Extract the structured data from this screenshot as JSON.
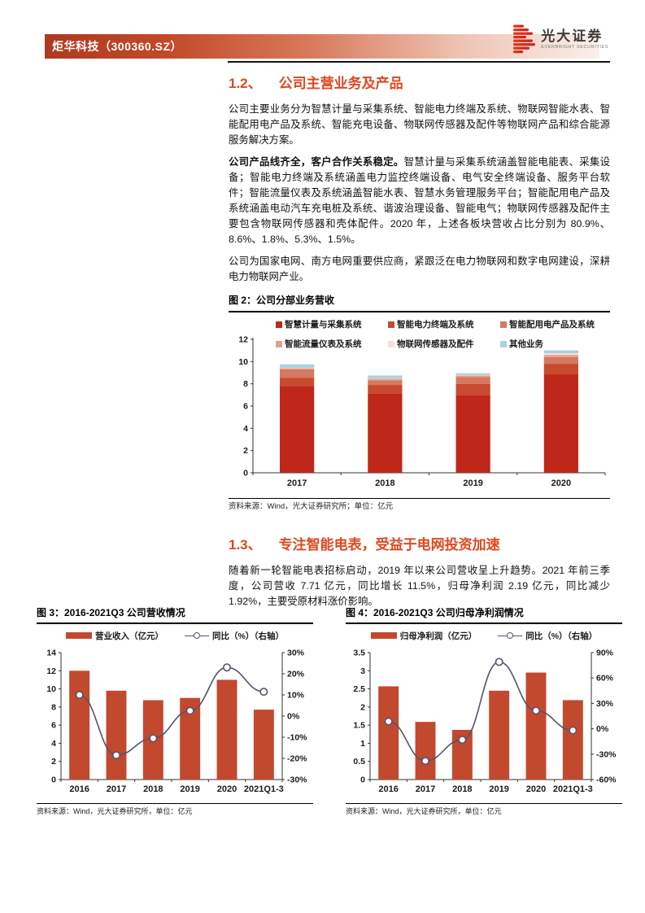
{
  "header": {
    "stock_label": "炬华科技（300360.SZ）",
    "brand_cn": "光大证券",
    "brand_en": "EVERBRIGHT SECURITIES"
  },
  "section_1_2": {
    "number": "1.2、",
    "title": "公司主营业务及产品",
    "para1": "公司主要业务分为智慧计量与采集系统、智能电力终端及系统、物联网智能水表、智能配用电产品及系统、智能充电设备、物联网传感器及配件等物联网产品和综合能源服务解决方案。",
    "para2_bold": "公司产品线齐全，客户合作关系稳定。",
    "para2_rest": "智慧计量与采集系统涵盖智能电能表、采集设备；智能电力终端及系统涵盖电力监控终端设备、电气安全终端设备、服务平台软件；智能流量仪表及系统涵盖智能水表、智慧水务管理服务平台；智能配用电产品及系统涵盖电动汽车充电桩及系统、谐波治理设备、智能电气；物联网传感器及配件主要包含物联网传感器和壳体配件。2020 年，上述各板块营收占比分别为 80.9%、8.6%、1.8%、5.3%、1.5%。",
    "para3": "公司为国家电网、南方电网重要供应商，紧跟泛在电力物联网和数字电网建设，深耕电力物联网产业。"
  },
  "figure2": {
    "title": "图 2：公司分部业务营收",
    "source": "资料来源：Wind，光大证券研究所；单位：亿元"
  },
  "section_1_3": {
    "number": "1.3、",
    "title": "专注智能电表，受益于电网投资加速",
    "para1": "随着新一轮智能电表招标启动，2019 年以来公司营收呈上升趋势。2021 年前三季度，公司营收 7.71 亿元，同比增长 11.5%，归母净利润 2.19 亿元，同比减少 1.92%，主要受原材料涨价影响。"
  },
  "figure3": {
    "title": "图 3：2016-2021Q3 公司营收情况",
    "source": "资料来源：Wind，光大证券研究所，单位：亿元"
  },
  "figure4": {
    "title": "图 4：2016-2021Q3 公司归母净利润情况",
    "source": "资料来源：Wind，光大证券研究所，单位：亿元"
  },
  "colors": {
    "accent_orange": "#e1471f",
    "bar_red": "#c2492e",
    "line_navy": "#54536e",
    "banner_red": "#ae3920"
  },
  "chart_data": [
    {
      "id": "fig2-chart",
      "type": "bar",
      "subtype": "stacked",
      "title": "公司分部业务营收",
      "unit": "亿元",
      "categories": [
        "2017",
        "2018",
        "2019",
        "2020"
      ],
      "series": [
        {
          "name": "智慧计量与采集系统",
          "color": "#bf271b",
          "values": [
            7.8,
            7.1,
            7.0,
            8.85
          ]
        },
        {
          "name": "智能电力终端及系统",
          "color": "#c84a2f",
          "values": [
            0.75,
            0.8,
            1.0,
            0.95
          ]
        },
        {
          "name": "智能配用电产品及系统",
          "color": "#d6795f",
          "values": [
            0.75,
            0.4,
            0.6,
            0.6
          ]
        },
        {
          "name": "智能流量仪表及系统",
          "color": "#e2a18f",
          "values": [
            0.1,
            0.15,
            0.15,
            0.2
          ]
        },
        {
          "name": "物联网传感器及配件",
          "color": "#f5e2dc",
          "values": [
            0.05,
            0.05,
            0.05,
            0.15
          ]
        },
        {
          "name": "其他业务",
          "color": "#abd0de",
          "values": [
            0.3,
            0.25,
            0.15,
            0.25
          ]
        }
      ],
      "ylim": [
        0,
        12
      ],
      "ytick_step": 2,
      "grid": false,
      "legend_position": "top"
    },
    {
      "id": "fig3-chart",
      "type": "bar-line",
      "categories": [
        "2016",
        "2017",
        "2018",
        "2019",
        "2020",
        "2021Q1-3"
      ],
      "bar": {
        "name": "营业收入（亿元）",
        "color": "#c2492e",
        "values": [
          12.0,
          9.8,
          8.75,
          9.0,
          11.0,
          7.71
        ]
      },
      "line": {
        "name": "同比（%）（右轴）",
        "color": "#54536e",
        "values": [
          10,
          -18.5,
          -10.5,
          2.5,
          23,
          11.5
        ]
      },
      "ylim_left": [
        0,
        14
      ],
      "ytick_left_step": 2,
      "ylim_right": [
        -30,
        30
      ],
      "ytick_right_step": 10,
      "right_suffix": "%",
      "grid": false,
      "legend_position": "top"
    },
    {
      "id": "fig4-chart",
      "type": "bar-line",
      "categories": [
        "2016",
        "2017",
        "2018",
        "2019",
        "2020",
        "2021Q1-3"
      ],
      "bar": {
        "name": "归母净利润（亿元）",
        "color": "#c2492e",
        "values": [
          2.57,
          1.59,
          1.37,
          2.45,
          2.95,
          2.19
        ]
      },
      "line": {
        "name": "同比（%）（右轴）",
        "color": "#54536e",
        "values": [
          8.6,
          -38,
          -13,
          79,
          21.5,
          -1.9
        ]
      },
      "ylim_left": [
        0,
        3.5
      ],
      "ytick_left_step": 0.5,
      "ylim_right": [
        -60,
        90
      ],
      "ytick_right_step": 30,
      "right_suffix": "%",
      "grid": false,
      "legend_position": "top"
    }
  ]
}
